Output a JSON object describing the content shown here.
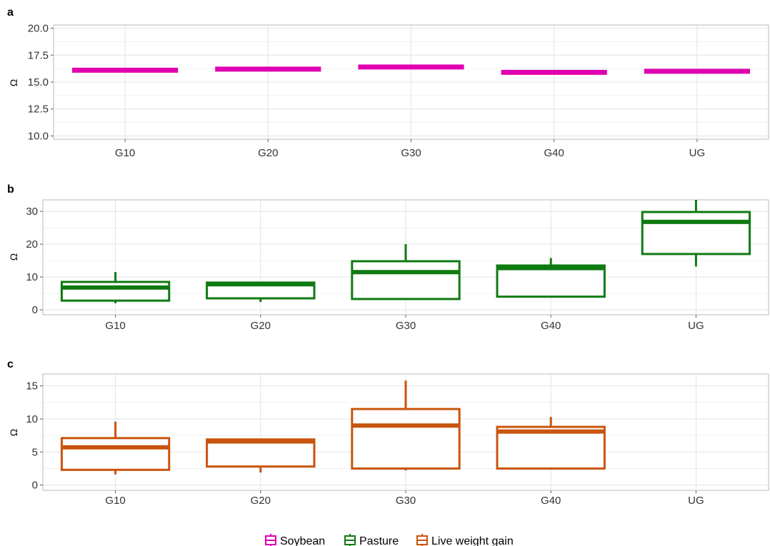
{
  "colors": {
    "soybean": "#e000b0",
    "pasture": "#0f7a12",
    "live_weight_gain": "#c9540d",
    "grid": "#e3e3e3",
    "panel_border": "#b8b8b8"
  },
  "legend": {
    "items": [
      {
        "label": "Soybean",
        "color": "#e000b0"
      },
      {
        "label": "Pasture",
        "color": "#0f7a12"
      },
      {
        "label": "Live weight gain",
        "color": "#c9540d"
      }
    ]
  },
  "chart_data": [
    {
      "type": "box",
      "panel": "a",
      "ylabel": "Ω",
      "series_name": "Soybean",
      "color": "#e000b0",
      "categories": [
        "G10",
        "G20",
        "G30",
        "G40",
        "UG"
      ],
      "ylim": [
        9.7,
        20.3
      ],
      "yticks": [
        10.0,
        12.5,
        15.0,
        17.5,
        20.0
      ],
      "ytick_labels": [
        "10.0",
        "12.5",
        "15.0",
        "17.5",
        "20.0"
      ],
      "boxes": [
        {
          "category": "G10",
          "min": 16.1,
          "q1": 16.1,
          "median": 16.1,
          "q3": 16.1,
          "max": 16.1
        },
        {
          "category": "G20",
          "min": 16.2,
          "q1": 16.2,
          "median": 16.2,
          "q3": 16.2,
          "max": 16.2
        },
        {
          "category": "G30",
          "min": 16.4,
          "q1": 16.4,
          "median": 16.4,
          "q3": 16.4,
          "max": 16.4
        },
        {
          "category": "G40",
          "min": 15.9,
          "q1": 15.9,
          "median": 15.9,
          "q3": 15.9,
          "max": 15.9
        },
        {
          "category": "UG",
          "min": 16.0,
          "q1": 16.0,
          "median": 16.0,
          "q3": 16.0,
          "max": 16.0
        }
      ],
      "grid": true
    },
    {
      "type": "box",
      "panel": "b",
      "ylabel": "Ω",
      "series_name": "Pasture",
      "color": "#0f7a12",
      "categories": [
        "G10",
        "G20",
        "G30",
        "G40",
        "UG"
      ],
      "ylim": [
        -1.5,
        33.5
      ],
      "yticks": [
        0,
        10,
        20,
        30
      ],
      "ytick_labels": [
        "0",
        "10",
        "20",
        "30"
      ],
      "boxes": [
        {
          "category": "G10",
          "min": 2.0,
          "q1": 2.8,
          "median": 6.8,
          "q3": 8.5,
          "max": 11.5
        },
        {
          "category": "G20",
          "min": 2.4,
          "q1": 3.5,
          "median": 7.8,
          "q3": 8.3,
          "max": 8.3
        },
        {
          "category": "G30",
          "min": 3.0,
          "q1": 3.3,
          "median": 11.5,
          "q3": 14.8,
          "max": 20.0
        },
        {
          "category": "G40",
          "min": 4.0,
          "q1": 4.0,
          "median": 12.7,
          "q3": 13.5,
          "max": 15.8
        },
        {
          "category": "UG",
          "min": 13.2,
          "q1": 17.0,
          "median": 26.8,
          "q3": 29.8,
          "max": 33.5
        }
      ],
      "grid": true
    },
    {
      "type": "box",
      "panel": "c",
      "ylabel": "Ω",
      "series_name": "Live weight gain",
      "color": "#c9540d",
      "categories": [
        "G10",
        "G20",
        "G30",
        "G40",
        "UG"
      ],
      "ylim": [
        -0.8,
        16.8
      ],
      "yticks": [
        0,
        5,
        10,
        15
      ],
      "ytick_labels": [
        "0",
        "5",
        "10",
        "15"
      ],
      "boxes": [
        {
          "category": "G10",
          "min": 1.6,
          "q1": 2.3,
          "median": 5.7,
          "q3": 7.1,
          "max": 9.6
        },
        {
          "category": "G20",
          "min": 1.9,
          "q1": 2.8,
          "median": 6.6,
          "q3": 6.9,
          "max": 6.9
        },
        {
          "category": "G30",
          "min": 2.2,
          "q1": 2.5,
          "median": 9.0,
          "q3": 11.5,
          "max": 15.8
        },
        {
          "category": "G40",
          "min": 2.5,
          "q1": 2.5,
          "median": 8.1,
          "q3": 8.8,
          "max": 10.3
        },
        {
          "category": "UG",
          "min": null,
          "q1": null,
          "median": null,
          "q3": null,
          "max": null
        }
      ],
      "grid": true
    }
  ]
}
